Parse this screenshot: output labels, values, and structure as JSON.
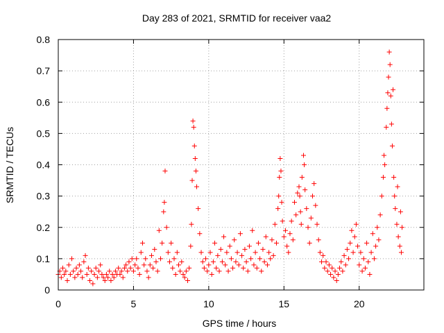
{
  "chart_data": {
    "type": "scatter",
    "title": "Day 283 of 2021, SRMTID for receiver vaa2",
    "xlabel": "GPS time / hours",
    "ylabel": "SRMTID / TECUs",
    "xlim": [
      0,
      24.3
    ],
    "ylim": [
      0,
      0.8
    ],
    "x_ticks": [
      0,
      5,
      10,
      15,
      20
    ],
    "x_tick_labels": [
      "0",
      "5",
      "10",
      "15",
      "20"
    ],
    "y_ticks": [
      0,
      0.1,
      0.2,
      0.3,
      0.4,
      0.5,
      0.6,
      0.7,
      0.8
    ],
    "y_tick_labels": [
      "0",
      "0.1",
      "0.2",
      "0.3",
      "0.4",
      "0.5",
      "0.6",
      "0.7",
      "0.8"
    ],
    "grid": true,
    "marker": "+",
    "color": "#ff0000",
    "series": [
      {
        "name": "SRMTID",
        "points": [
          [
            0.0,
            0.05
          ],
          [
            0.1,
            0.06
          ],
          [
            0.2,
            0.04
          ],
          [
            0.3,
            0.07
          ],
          [
            0.4,
            0.05
          ],
          [
            0.5,
            0.06
          ],
          [
            0.6,
            0.03
          ],
          [
            0.7,
            0.08
          ],
          [
            0.8,
            0.05
          ],
          [
            0.9,
            0.1
          ],
          [
            1.0,
            0.06
          ],
          [
            1.1,
            0.04
          ],
          [
            1.2,
            0.07
          ],
          [
            1.3,
            0.05
          ],
          [
            1.4,
            0.08
          ],
          [
            1.5,
            0.06
          ],
          [
            1.6,
            0.04
          ],
          [
            1.7,
            0.09
          ],
          [
            1.8,
            0.11
          ],
          [
            1.9,
            0.05
          ],
          [
            2.0,
            0.07
          ],
          [
            2.1,
            0.03
          ],
          [
            2.2,
            0.06
          ],
          [
            2.3,
            0.02
          ],
          [
            2.4,
            0.05
          ],
          [
            2.5,
            0.07
          ],
          [
            2.6,
            0.04
          ],
          [
            2.7,
            0.06
          ],
          [
            2.8,
            0.08
          ],
          [
            2.9,
            0.05
          ],
          [
            3.0,
            0.04
          ],
          [
            3.1,
            0.03
          ],
          [
            3.2,
            0.05
          ],
          [
            3.3,
            0.04
          ],
          [
            3.4,
            0.06
          ],
          [
            3.5,
            0.03
          ],
          [
            3.6,
            0.05
          ],
          [
            3.7,
            0.04
          ],
          [
            3.8,
            0.06
          ],
          [
            3.9,
            0.05
          ],
          [
            4.0,
            0.07
          ],
          [
            4.1,
            0.05
          ],
          [
            4.2,
            0.06
          ],
          [
            4.3,
            0.04
          ],
          [
            4.4,
            0.07
          ],
          [
            4.5,
            0.08
          ],
          [
            4.6,
            0.06
          ],
          [
            4.7,
            0.09
          ],
          [
            4.8,
            0.07
          ],
          [
            4.9,
            0.1
          ],
          [
            5.0,
            0.06
          ],
          [
            5.1,
            0.08
          ],
          [
            5.2,
            0.1
          ],
          [
            5.3,
            0.07
          ],
          [
            5.4,
            0.05
          ],
          [
            5.5,
            0.12
          ],
          [
            5.6,
            0.15
          ],
          [
            5.7,
            0.08
          ],
          [
            5.8,
            0.1
          ],
          [
            5.9,
            0.06
          ],
          [
            6.0,
            0.04
          ],
          [
            6.1,
            0.08
          ],
          [
            6.2,
            0.11
          ],
          [
            6.3,
            0.07
          ],
          [
            6.4,
            0.13
          ],
          [
            6.5,
            0.09
          ],
          [
            6.6,
            0.06
          ],
          [
            6.7,
            0.19
          ],
          [
            6.8,
            0.1
          ],
          [
            6.9,
            0.15
          ],
          [
            7.0,
            0.25
          ],
          [
            7.05,
            0.28
          ],
          [
            7.1,
            0.38
          ],
          [
            7.2,
            0.2
          ],
          [
            7.3,
            0.12
          ],
          [
            7.4,
            0.09
          ],
          [
            7.5,
            0.15
          ],
          [
            7.6,
            0.07
          ],
          [
            7.7,
            0.1
          ],
          [
            7.8,
            0.05
          ],
          [
            7.9,
            0.12
          ],
          [
            8.0,
            0.08
          ],
          [
            8.1,
            0.06
          ],
          [
            8.2,
            0.09
          ],
          [
            8.3,
            0.05
          ],
          [
            8.4,
            0.04
          ],
          [
            8.5,
            0.06
          ],
          [
            8.6,
            0.03
          ],
          [
            8.7,
            0.07
          ],
          [
            8.8,
            0.14
          ],
          [
            8.85,
            0.21
          ],
          [
            8.9,
            0.35
          ],
          [
            8.95,
            0.54
          ],
          [
            9.0,
            0.52
          ],
          [
            9.05,
            0.46
          ],
          [
            9.1,
            0.42
          ],
          [
            9.15,
            0.38
          ],
          [
            9.2,
            0.33
          ],
          [
            9.3,
            0.26
          ],
          [
            9.4,
            0.18
          ],
          [
            9.5,
            0.12
          ],
          [
            9.6,
            0.09
          ],
          [
            9.7,
            0.07
          ],
          [
            9.8,
            0.1
          ],
          [
            9.9,
            0.06
          ],
          [
            10.0,
            0.08
          ],
          [
            10.1,
            0.12
          ],
          [
            10.2,
            0.05
          ],
          [
            10.3,
            0.09
          ],
          [
            10.4,
            0.15
          ],
          [
            10.5,
            0.07
          ],
          [
            10.6,
            0.11
          ],
          [
            10.7,
            0.06
          ],
          [
            10.8,
            0.13
          ],
          [
            10.9,
            0.09
          ],
          [
            11.0,
            0.17
          ],
          [
            11.1,
            0.08
          ],
          [
            11.2,
            0.12
          ],
          [
            11.3,
            0.06
          ],
          [
            11.4,
            0.14
          ],
          [
            11.5,
            0.1
          ],
          [
            11.6,
            0.07
          ],
          [
            11.7,
            0.16
          ],
          [
            11.8,
            0.09
          ],
          [
            11.9,
            0.12
          ],
          [
            12.0,
            0.08
          ],
          [
            12.1,
            0.18
          ],
          [
            12.2,
            0.11
          ],
          [
            12.3,
            0.07
          ],
          [
            12.4,
            0.13
          ],
          [
            12.5,
            0.09
          ],
          [
            12.6,
            0.06
          ],
          [
            12.7,
            0.14
          ],
          [
            12.8,
            0.1
          ],
          [
            12.9,
            0.19
          ],
          [
            13.0,
            0.08
          ],
          [
            13.1,
            0.12
          ],
          [
            13.2,
            0.07
          ],
          [
            13.3,
            0.15
          ],
          [
            13.4,
            0.1
          ],
          [
            13.5,
            0.06
          ],
          [
            13.6,
            0.13
          ],
          [
            13.7,
            0.09
          ],
          [
            13.8,
            0.17
          ],
          [
            13.9,
            0.08
          ],
          [
            14.0,
            0.12
          ],
          [
            14.1,
            0.1
          ],
          [
            14.2,
            0.16
          ],
          [
            14.3,
            0.11
          ],
          [
            14.4,
            0.21
          ],
          [
            14.5,
            0.15
          ],
          [
            14.6,
            0.26
          ],
          [
            14.65,
            0.3
          ],
          [
            14.7,
            0.36
          ],
          [
            14.75,
            0.42
          ],
          [
            14.8,
            0.38
          ],
          [
            14.85,
            0.28
          ],
          [
            14.9,
            0.22
          ],
          [
            15.0,
            0.17
          ],
          [
            15.1,
            0.19
          ],
          [
            15.2,
            0.14
          ],
          [
            15.3,
            0.12
          ],
          [
            15.4,
            0.18
          ],
          [
            15.5,
            0.22
          ],
          [
            15.6,
            0.16
          ],
          [
            15.7,
            0.28
          ],
          [
            15.8,
            0.24
          ],
          [
            15.9,
            0.31
          ],
          [
            16.0,
            0.33
          ],
          [
            16.05,
            0.3
          ],
          [
            16.1,
            0.25
          ],
          [
            16.15,
            0.21
          ],
          [
            16.2,
            0.36
          ],
          [
            16.3,
            0.43
          ],
          [
            16.35,
            0.4
          ],
          [
            16.4,
            0.32
          ],
          [
            16.5,
            0.26
          ],
          [
            16.6,
            0.2
          ],
          [
            16.7,
            0.15
          ],
          [
            16.8,
            0.23
          ],
          [
            16.9,
            0.3
          ],
          [
            17.0,
            0.34
          ],
          [
            17.1,
            0.27
          ],
          [
            17.2,
            0.21
          ],
          [
            17.3,
            0.16
          ],
          [
            17.4,
            0.12
          ],
          [
            17.5,
            0.09
          ],
          [
            17.6,
            0.11
          ],
          [
            17.7,
            0.07
          ],
          [
            17.8,
            0.09
          ],
          [
            17.9,
            0.06
          ],
          [
            18.0,
            0.08
          ],
          [
            18.1,
            0.05
          ],
          [
            18.2,
            0.07
          ],
          [
            18.3,
            0.04
          ],
          [
            18.4,
            0.06
          ],
          [
            18.5,
            0.03
          ],
          [
            18.6,
            0.05
          ],
          [
            18.7,
            0.07
          ],
          [
            18.8,
            0.09
          ],
          [
            18.9,
            0.06
          ],
          [
            19.0,
            0.11
          ],
          [
            19.1,
            0.08
          ],
          [
            19.2,
            0.13
          ],
          [
            19.3,
            0.1
          ],
          [
            19.4,
            0.15
          ],
          [
            19.5,
            0.19
          ],
          [
            19.6,
            0.12
          ],
          [
            19.7,
            0.17
          ],
          [
            19.8,
            0.21
          ],
          [
            19.9,
            0.14
          ],
          [
            20.0,
            0.08
          ],
          [
            20.1,
            0.12
          ],
          [
            20.2,
            0.06
          ],
          [
            20.3,
            0.1
          ],
          [
            20.4,
            0.07
          ],
          [
            20.5,
            0.15
          ],
          [
            20.6,
            0.09
          ],
          [
            20.7,
            0.05
          ],
          [
            20.8,
            0.12
          ],
          [
            20.9,
            0.18
          ],
          [
            21.0,
            0.1
          ],
          [
            21.1,
            0.14
          ],
          [
            21.2,
            0.2
          ],
          [
            21.3,
            0.16
          ],
          [
            21.4,
            0.24
          ],
          [
            21.5,
            0.3
          ],
          [
            21.6,
            0.36
          ],
          [
            21.65,
            0.43
          ],
          [
            21.7,
            0.4
          ],
          [
            21.8,
            0.52
          ],
          [
            21.85,
            0.58
          ],
          [
            21.9,
            0.63
          ],
          [
            21.95,
            0.68
          ],
          [
            22.0,
            0.76
          ],
          [
            22.05,
            0.72
          ],
          [
            22.1,
            0.62
          ],
          [
            22.15,
            0.53
          ],
          [
            22.2,
            0.46
          ],
          [
            22.25,
            0.64
          ],
          [
            22.3,
            0.36
          ],
          [
            22.35,
            0.3
          ],
          [
            22.4,
            0.26
          ],
          [
            22.5,
            0.21
          ],
          [
            22.55,
            0.33
          ],
          [
            22.6,
            0.17
          ],
          [
            22.7,
            0.14
          ],
          [
            22.75,
            0.25
          ],
          [
            22.8,
            0.12
          ],
          [
            22.85,
            0.2
          ]
        ]
      }
    ]
  }
}
